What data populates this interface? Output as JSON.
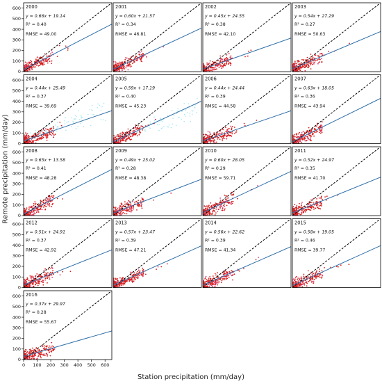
{
  "chart_data": {
    "type": "scatter",
    "xlabel": "Station precipitation (mm/day)",
    "ylabel": "Remote precipitation (mm/day)",
    "xlim": [
      0,
      650
    ],
    "ylim": [
      0,
      650
    ],
    "xticks": [
      0,
      100,
      200,
      300,
      400,
      500,
      600
    ],
    "yticks": [
      0,
      100,
      200,
      300,
      400,
      500,
      600
    ],
    "grid": false,
    "reference_line": "1:1",
    "panels": [
      {
        "year": "2000",
        "slope": 0.66,
        "intercept": 19.14,
        "eq": "y = 0.66x + 19.14",
        "r2": "R² = 0.40",
        "rmse": "RMSE = 49.00"
      },
      {
        "year": "2001",
        "slope": 0.6,
        "intercept": 21.57,
        "eq": "y = 0.60x + 21.57",
        "r2": "R² = 0.34",
        "rmse": "RMSE = 46.81"
      },
      {
        "year": "2002",
        "slope": 0.45,
        "intercept": 24.55,
        "eq": "y = 0.45x + 24.55",
        "r2": "R² = 0.38",
        "rmse": "RMSE = 42.10"
      },
      {
        "year": "2003",
        "slope": 0.54,
        "intercept": 27.29,
        "eq": "y = 0.54x + 27.29",
        "r2": "R² = 0.27",
        "rmse": "RMSE = 50.63"
      },
      {
        "year": "2004",
        "slope": 0.44,
        "intercept": 25.49,
        "eq": "y = 0.44x + 25.49",
        "r2": "R² = 0.37",
        "rmse": "RMSE = 39.69"
      },
      {
        "year": "2005",
        "slope": 0.59,
        "intercept": 17.19,
        "eq": "y = 0.59x + 17.19",
        "r2": "R² = 0.40",
        "rmse": "RMSE = 45.23"
      },
      {
        "year": "2006",
        "slope": 0.44,
        "intercept": 24.44,
        "eq": "y = 0.44x + 24.44",
        "r2": "R² = 0.39",
        "rmse": "RMSE = 44.58"
      },
      {
        "year": "2007",
        "slope": 0.63,
        "intercept": 18.05,
        "eq": "y = 0.63x + 18.05",
        "r2": "R² = 0.36",
        "rmse": "RMSE = 43.94"
      },
      {
        "year": "2008",
        "slope": 0.65,
        "intercept": 13.58,
        "eq": "y = 0.65x + 13.58",
        "r2": "R² = 0.41",
        "rmse": "RMSE = 48.28"
      },
      {
        "year": "2009",
        "slope": 0.49,
        "intercept": 25.02,
        "eq": "y = 0.49x + 25.02",
        "r2": "R² = 0.28",
        "rmse": "RMSE = 48.38"
      },
      {
        "year": "2010",
        "slope": 0.6,
        "intercept": 28.05,
        "eq": "y = 0.60x + 28.05",
        "r2": "R² = 0.29",
        "rmse": "RMSE = 59.71"
      },
      {
        "year": "2011",
        "slope": 0.52,
        "intercept": 24.97,
        "eq": "y = 0.52x + 24.97",
        "r2": "R² = 0.35",
        "rmse": "RMSE = 41.70"
      },
      {
        "year": "2012",
        "slope": 0.51,
        "intercept": 24.91,
        "eq": "y = 0.51x + 24.91",
        "r2": "R² = 0.37",
        "rmse": "RMSE = 42.92"
      },
      {
        "year": "2013",
        "slope": 0.57,
        "intercept": 23.47,
        "eq": "y = 0.57x + 23.47",
        "r2": "R² = 0.39",
        "rmse": "RMSE = 47.21"
      },
      {
        "year": "2014",
        "slope": 0.56,
        "intercept": 22.62,
        "eq": "y = 0.56x + 22.62",
        "r2": "R² = 0.39",
        "rmse": "RMSE = 41.34"
      },
      {
        "year": "2015",
        "slope": 0.58,
        "intercept": 19.05,
        "eq": "y = 0.58x + 19.05",
        "r2": "R² = 0.46",
        "rmse": "RMSE = 39.77"
      },
      {
        "year": "2016",
        "slope": 0.37,
        "intercept": 29.97,
        "eq": "y = 0.37x + 29.97",
        "r2": "R² = 0.28",
        "rmse": "RMSE = 55.67"
      }
    ],
    "colors": {
      "fit_line": "#2f6fa8",
      "reference_line": "#000000",
      "points": "#d62020",
      "points_secondary": "#e04080",
      "faint_points": "#a8e6f0"
    }
  }
}
